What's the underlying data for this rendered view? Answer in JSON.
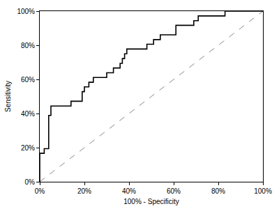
{
  "chart_data": {
    "type": "line",
    "x_label": "100% - Specificity",
    "y_label": "Sensitivity",
    "xlim": [
      0,
      100
    ],
    "ylim": [
      0,
      100
    ],
    "xticks": [
      {
        "value": 0,
        "label": "0%"
      },
      {
        "value": 20,
        "label": "20%"
      },
      {
        "value": 40,
        "label": "40%"
      },
      {
        "value": 60,
        "label": "60%"
      },
      {
        "value": 80,
        "label": "80%"
      },
      {
        "value": 100,
        "label": "100%"
      }
    ],
    "yticks": [
      {
        "value": 0,
        "label": "0%"
      },
      {
        "value": 20,
        "label": "20%"
      },
      {
        "value": 40,
        "label": "40%"
      },
      {
        "value": 60,
        "label": "60%"
      },
      {
        "value": 80,
        "label": "80%"
      },
      {
        "value": 100,
        "label": "100%"
      }
    ],
    "grid": false,
    "series": [
      {
        "color": "#000000",
        "line_style": "step",
        "x": [
          0,
          0,
          2,
          4,
          5,
          14,
          19,
          20,
          22,
          24,
          30,
          33,
          36,
          37,
          38,
          39,
          48,
          51,
          54,
          61,
          69,
          71,
          83,
          100
        ],
        "values": [
          0,
          16.7,
          19.4,
          38.9,
          44.4,
          47.2,
          52.8,
          55.6,
          58.3,
          61.1,
          63.9,
          66.7,
          69.4,
          72.2,
          75,
          77.8,
          80.6,
          83.3,
          86.1,
          91.7,
          94.4,
          97.2,
          100,
          100
        ]
      },
      {
        "color": "#888888",
        "line_style": "dashed",
        "x": [
          0,
          100
        ],
        "values": [
          0,
          100
        ]
      }
    ]
  }
}
